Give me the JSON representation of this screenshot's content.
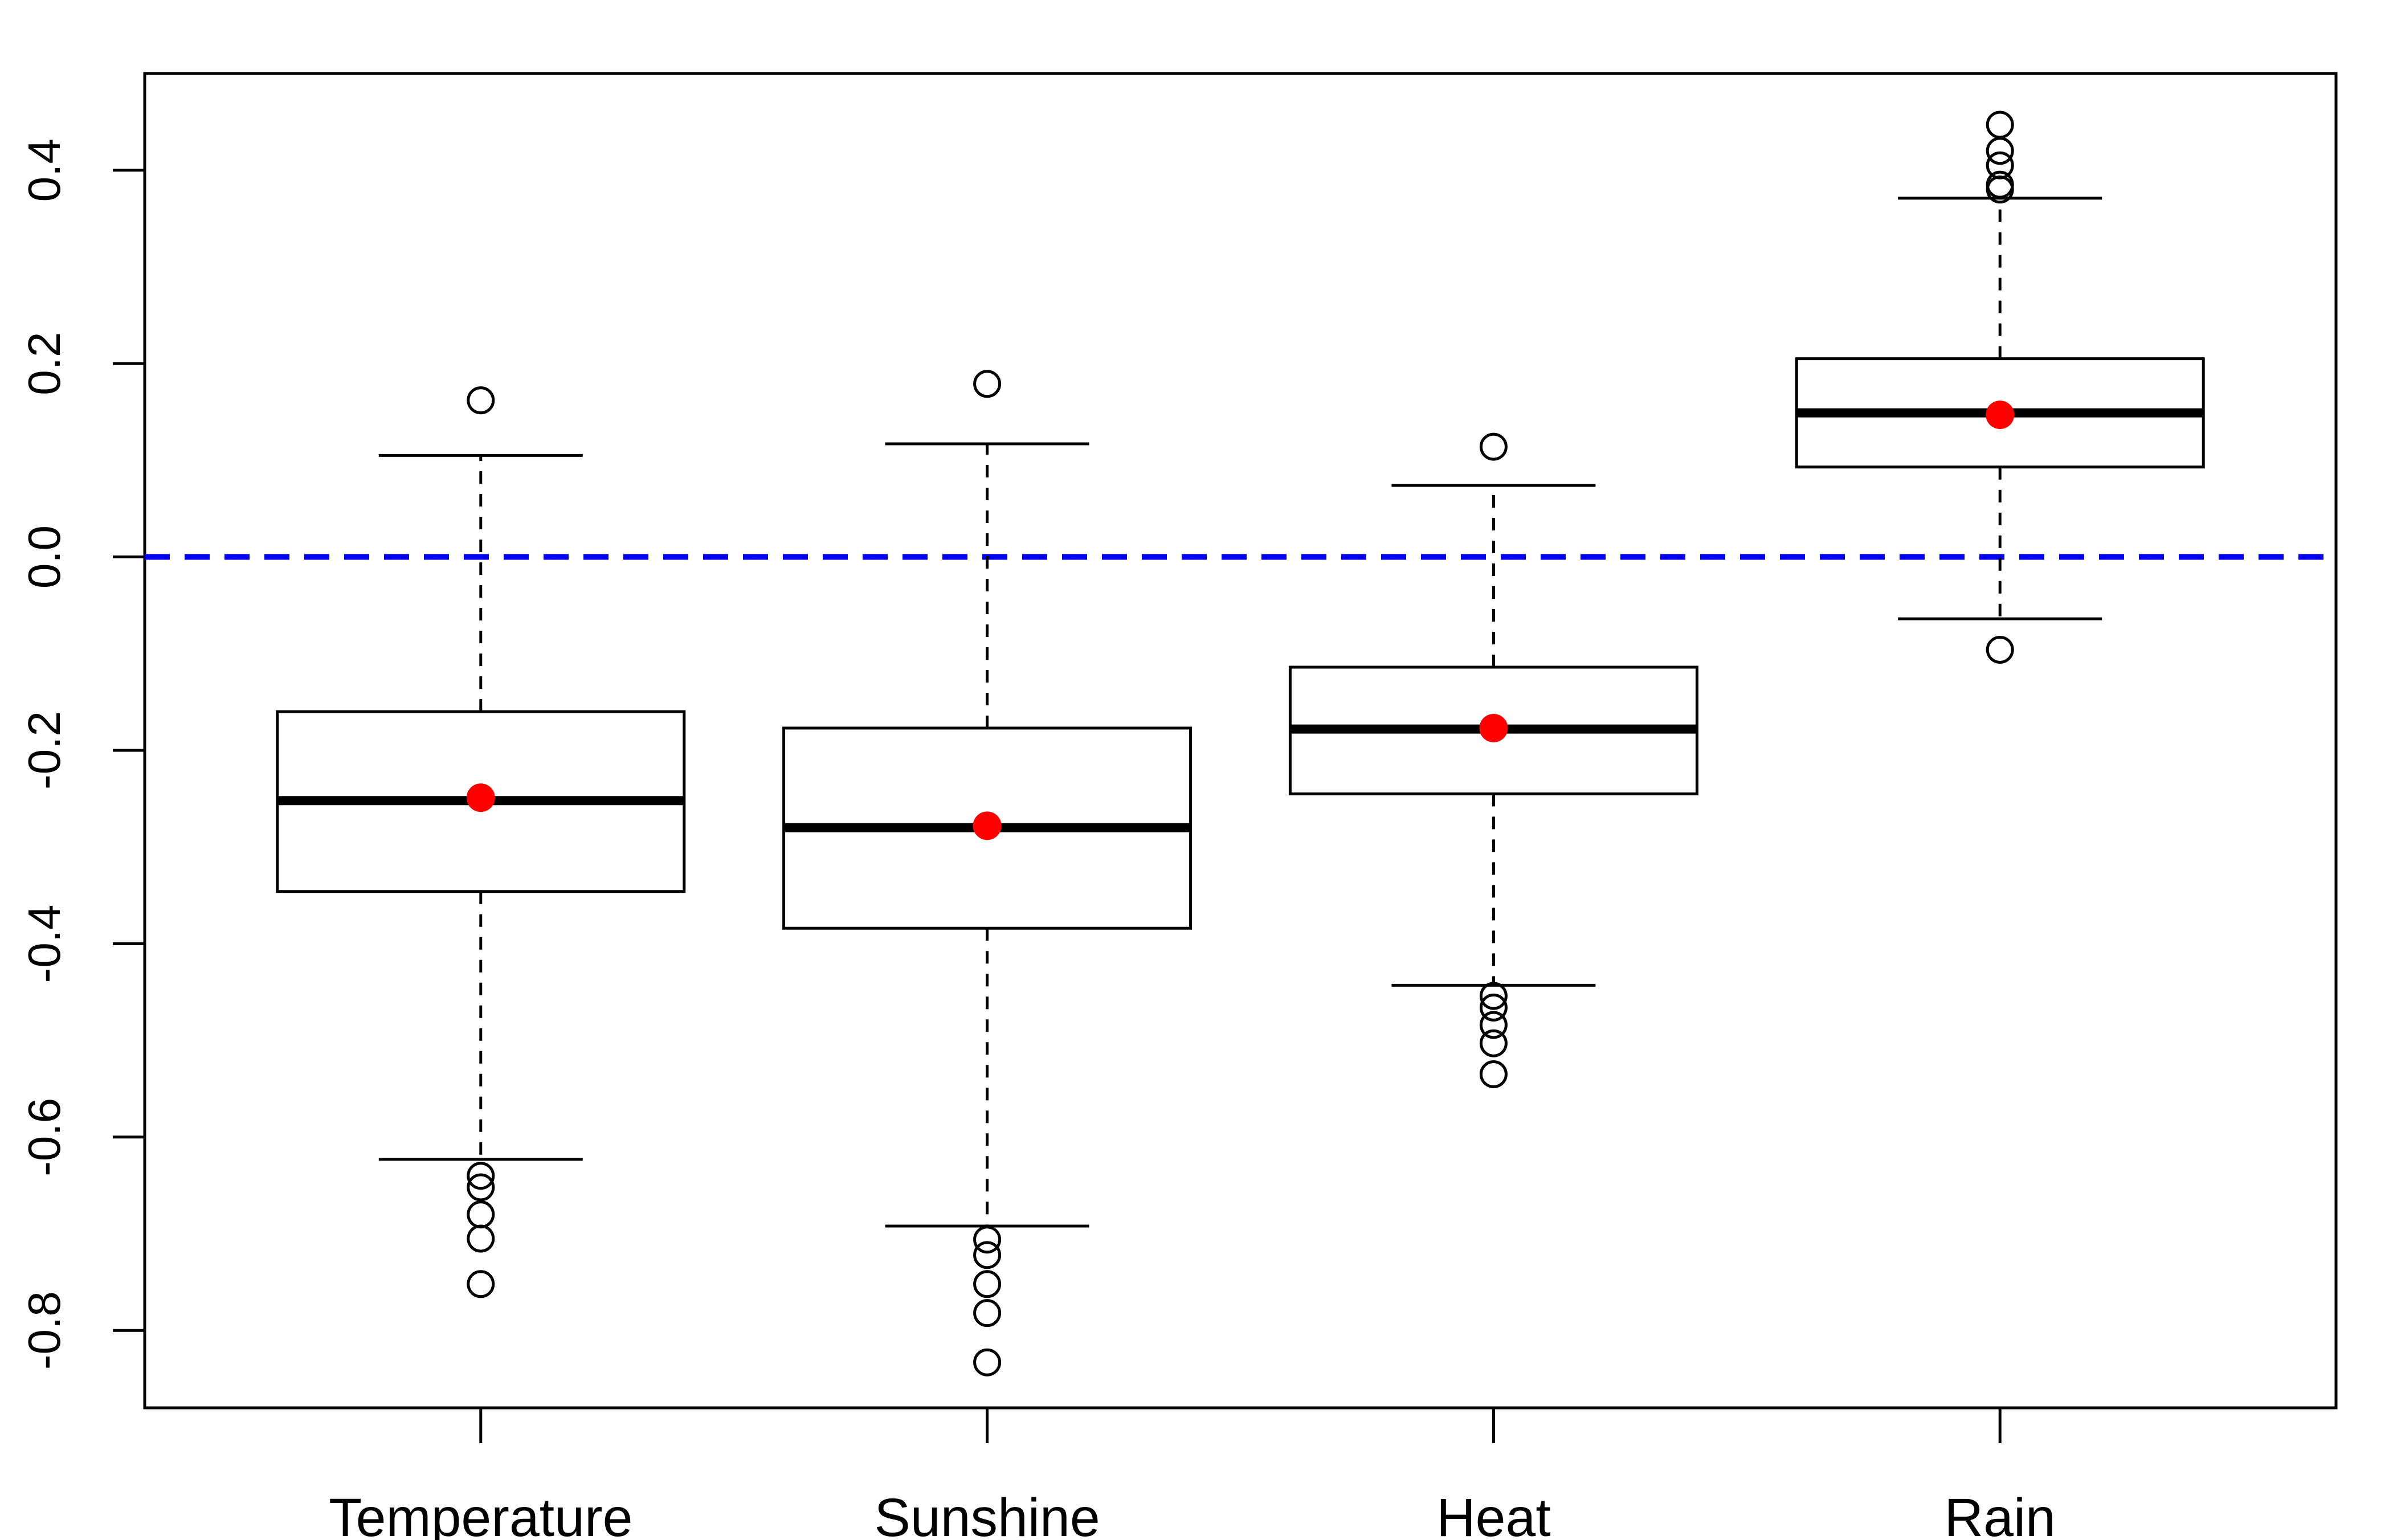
{
  "chart_data": {
    "type": "boxplot",
    "title": "",
    "xlabel": "",
    "ylabel": "",
    "ylim": [
      -0.88,
      0.5
    ],
    "yticks": [
      0.4,
      0.2,
      0.0,
      -0.2,
      -0.4,
      -0.6,
      -0.8
    ],
    "ytick_labels": [
      "0.4",
      "0.2",
      "0.0",
      "-0.2",
      "-0.4",
      "-0.6",
      "-0.8"
    ],
    "categories": [
      "Temperature",
      "Sunshine",
      "Heat",
      "Rain"
    ],
    "boxes": [
      {
        "name": "Temperature",
        "whisker_low": -0.623,
        "q1": -0.346,
        "median": -0.252,
        "q3": -0.16,
        "whisker_high": 0.105,
        "mean": -0.249,
        "outliers": [
          0.162,
          -0.64,
          -0.652,
          -0.68,
          -0.705,
          -0.752
        ]
      },
      {
        "name": "Sunshine",
        "whisker_low": -0.692,
        "q1": -0.384,
        "median": -0.28,
        "q3": -0.177,
        "whisker_high": 0.117,
        "mean": -0.278,
        "outliers": [
          0.179,
          -0.706,
          -0.722,
          -0.752,
          -0.782,
          -0.833
        ]
      },
      {
        "name": "Heat",
        "whisker_low": -0.443,
        "q1": -0.245,
        "median": -0.178,
        "q3": -0.114,
        "whisker_high": 0.074,
        "mean": -0.177,
        "outliers": [
          0.114,
          -0.454,
          -0.466,
          -0.484,
          -0.503,
          -0.535
        ]
      },
      {
        "name": "Rain",
        "whisker_low": -0.064,
        "q1": 0.093,
        "median": 0.149,
        "q3": 0.205,
        "whisker_high": 0.371,
        "mean": 0.147,
        "outliers": [
          -0.096,
          0.38,
          0.385,
          0.405,
          0.42,
          0.447
        ]
      }
    ],
    "reference_line": {
      "y": 0.0,
      "style": "dashed"
    },
    "colors": {
      "box": "#000000",
      "mean_point": "#ff0000",
      "reference_line": "#0000ee"
    },
    "grid": false,
    "legend": "none"
  }
}
